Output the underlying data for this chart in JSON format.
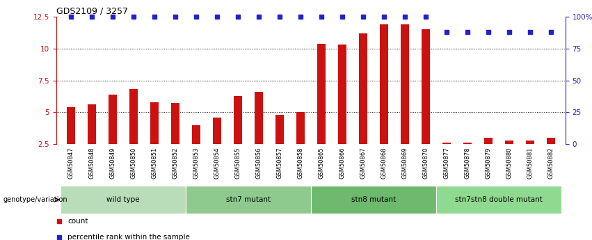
{
  "title": "GDS2109 / 3257",
  "samples": [
    "GSM50847",
    "GSM50848",
    "GSM50849",
    "GSM50850",
    "GSM50851",
    "GSM50852",
    "GSM50853",
    "GSM50854",
    "GSM50855",
    "GSM50856",
    "GSM50857",
    "GSM50858",
    "GSM50865",
    "GSM50866",
    "GSM50867",
    "GSM50868",
    "GSM50869",
    "GSM50870",
    "GSM50877",
    "GSM50878",
    "GSM50879",
    "GSM50880",
    "GSM50881",
    "GSM50882"
  ],
  "counts": [
    5.4,
    5.6,
    6.4,
    6.8,
    5.8,
    5.7,
    4.0,
    4.6,
    6.3,
    6.6,
    4.8,
    5.0,
    10.4,
    10.3,
    11.2,
    11.9,
    11.9,
    11.5,
    2.6,
    2.6,
    3.0,
    2.8,
    2.8,
    3.0
  ],
  "percentile_ranks": [
    100,
    100,
    100,
    100,
    100,
    100,
    100,
    100,
    100,
    100,
    100,
    100,
    100,
    100,
    100,
    100,
    100,
    100,
    88,
    88,
    88,
    88,
    88,
    88
  ],
  "groups": [
    {
      "label": "wild type",
      "start": 0,
      "end": 6,
      "color": "#b8ddb8"
    },
    {
      "label": "stn7 mutant",
      "start": 6,
      "end": 12,
      "color": "#8eca8e"
    },
    {
      "label": "stn8 mutant",
      "start": 12,
      "end": 18,
      "color": "#6db96d"
    },
    {
      "label": "stn7stn8 double mutant",
      "start": 18,
      "end": 24,
      "color": "#90d990"
    }
  ],
  "bar_color": "#cc1111",
  "dot_color": "#2222cc",
  "ylim_left": [
    2.5,
    12.5
  ],
  "yticks_left": [
    2.5,
    5.0,
    7.5,
    10.0,
    12.5
  ],
  "ylim_right": [
    0,
    100
  ],
  "yticks_right": [
    0,
    25,
    50,
    75,
    100
  ],
  "grid_lines": [
    5.0,
    7.5,
    10.0
  ],
  "background_color": "#ffffff",
  "genotype_label": "genotype/variation",
  "legend_count_label": "count",
  "legend_pct_label": "percentile rank within the sample",
  "bar_width": 0.4
}
